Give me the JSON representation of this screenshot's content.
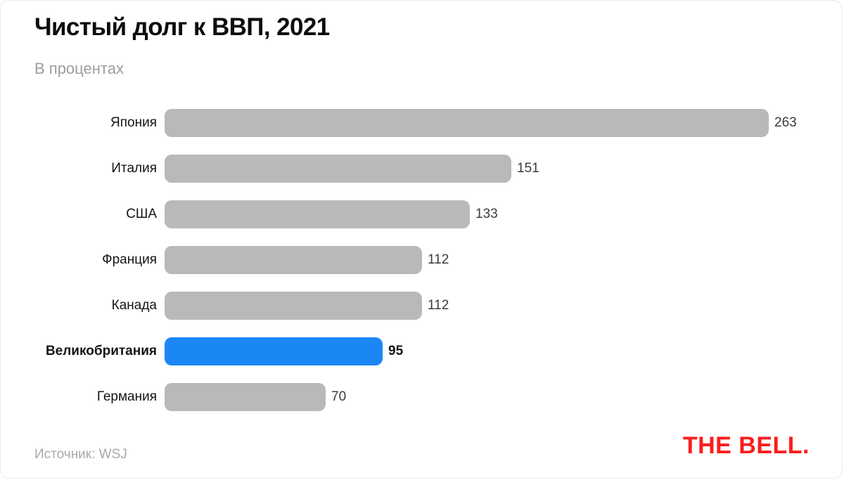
{
  "header": {
    "title": "Чистый долг к ВВП, 2021",
    "subtitle": "В процентах"
  },
  "footer": {
    "source": "Источник: WSJ",
    "brand": "THE BELL."
  },
  "colors": {
    "bar_default": "#b9b9b9",
    "bar_highlight": "#1b87f5",
    "brand_red": "#fa1d1d",
    "title_text": "#0d0d0d",
    "subtitle_text": "#9d9d9d",
    "source_text": "#a8a8a8"
  },
  "chart_data": {
    "type": "bar",
    "orientation": "horizontal",
    "title": "Чистый долг к ВВП, 2021",
    "subtitle": "В процентах",
    "xlabel": "",
    "ylabel": "",
    "xlim": [
      0,
      263
    ],
    "grid": false,
    "legend": false,
    "value_labels": "outside-end",
    "categories": [
      "Япония",
      "Италия",
      "США",
      "Франция",
      "Канада",
      "Великобритания",
      "Германия"
    ],
    "values": [
      263,
      151,
      133,
      112,
      112,
      95,
      70
    ],
    "highlighted_category": "Великобритания",
    "highlighted_value": 95,
    "source": "WSJ"
  }
}
